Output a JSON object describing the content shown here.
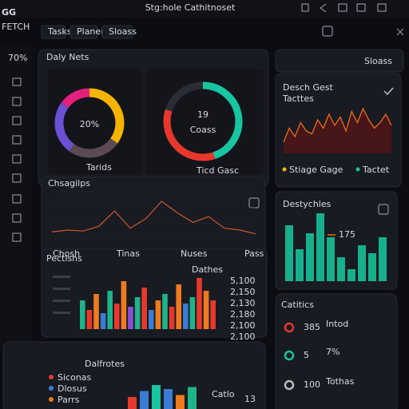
{
  "app": {
    "logo": "GG",
    "logo_sub": "FETCH",
    "title": "Stg:hole Cathitnoset",
    "tabs": [
      "Tasks",
      "Planer",
      "Sloass"
    ],
    "side_stat": "70%",
    "filter": "Sloass"
  },
  "daily_nets": {
    "title": "Daly Nets",
    "donut": {
      "center_label": "20%",
      "legend": "Tarids",
      "segments": [
        {
          "color": "#f5b400",
          "value": 35
        },
        {
          "color": "#5b4a55",
          "value": 25
        },
        {
          "color": "#6b4fd4",
          "value": 25
        },
        {
          "color": "#e3207c",
          "value": 15
        }
      ]
    },
    "ring": {
      "center_value": 19,
      "center_sub": "Coass",
      "legend": "Ticd Gasc",
      "segments": [
        {
          "color": "#17c5a0",
          "value": 45
        },
        {
          "color": "#e8382c",
          "value": 35
        },
        {
          "color": "#2a2d35",
          "value": 20
        }
      ]
    }
  },
  "line_panel": {
    "title": "Chsagilps",
    "x_labels": [
      "Chosh",
      "Tinas",
      "Nuses",
      "Pass"
    ],
    "color": "#d0562e",
    "values": [
      8,
      10,
      9,
      14,
      30,
      12,
      22,
      40,
      28,
      18,
      24,
      12,
      10,
      6
    ]
  },
  "desch_gest": {
    "title": "Desch Gest",
    "subtitle": "Tacttes",
    "legend": [
      "Stiage Gage",
      "Tactet"
    ],
    "legend_colors": [
      "#f5b400",
      "#17c5a0"
    ],
    "values": [
      20,
      45,
      30,
      55,
      40,
      35,
      60,
      45,
      70,
      50,
      65,
      40,
      75,
      55,
      80,
      60,
      45,
      55,
      70,
      50
    ]
  },
  "destychles": {
    "title": "Destychles",
    "annotation": 175,
    "color": "#17b08c",
    "values": [
      70,
      40,
      60,
      85,
      55,
      30,
      15,
      45,
      35,
      55
    ]
  },
  "pectlshs": {
    "title": "Pectlshs",
    "subtitle": "Dathes",
    "bars": [
      {
        "value": 45,
        "color": "#1fb38a"
      },
      {
        "value": 30,
        "color": "#e8382c"
      },
      {
        "value": 55,
        "color": "#f07a1e"
      },
      {
        "value": 25,
        "color": "#3a7bd5"
      },
      {
        "value": 60,
        "color": "#1fb38a"
      },
      {
        "value": 40,
        "color": "#e8382c"
      },
      {
        "value": 75,
        "color": "#f07a1e"
      },
      {
        "value": 35,
        "color": "#8a4fd4"
      },
      {
        "value": 50,
        "color": "#1fb38a"
      },
      {
        "value": 65,
        "color": "#e8382c"
      },
      {
        "value": 30,
        "color": "#3a7bd5"
      },
      {
        "value": 45,
        "color": "#f07a1e"
      },
      {
        "value": 55,
        "color": "#1fb38a"
      },
      {
        "value": 35,
        "color": "#e8382c"
      },
      {
        "value": 70,
        "color": "#f07a1e"
      },
      {
        "value": 40,
        "color": "#3a7bd5"
      },
      {
        "value": 50,
        "color": "#1fb38a"
      },
      {
        "value": 80,
        "color": "#e8382c"
      },
      {
        "value": 60,
        "color": "#f07a1e"
      },
      {
        "value": 45,
        "color": "#e8382c"
      }
    ],
    "side_labels": [
      "5,100",
      "2,150",
      "2,130",
      "2,180",
      "2,100",
      "2,100"
    ]
  },
  "catitics": {
    "title": "Catitics",
    "items": [
      {
        "value": 385,
        "label": "Intod",
        "color": "#e8382c"
      },
      {
        "value": 5,
        "label": "7%",
        "color": "#17c5a0"
      },
      {
        "value": 100,
        "label": "Tothas",
        "color": "#bbbbbb"
      }
    ]
  },
  "dalfrotes": {
    "title": "Dalfrotes",
    "legend": [
      "Siconas",
      "Dlosus",
      "Parrs"
    ],
    "legend_colors": [
      "#e8382c",
      "#3a7bd5",
      "#f07a1e"
    ],
    "tag": "Catlo",
    "tag_value": 13,
    "bars": [
      {
        "value": 30,
        "color": "#e8382c"
      },
      {
        "value": 45,
        "color": "#3a7bd5"
      },
      {
        "value": 60,
        "color": "#17c5a0"
      },
      {
        "value": 50,
        "color": "#3a7bd5"
      },
      {
        "value": 35,
        "color": "#f07a1e"
      },
      {
        "value": 55,
        "color": "#1fb38a"
      }
    ]
  }
}
